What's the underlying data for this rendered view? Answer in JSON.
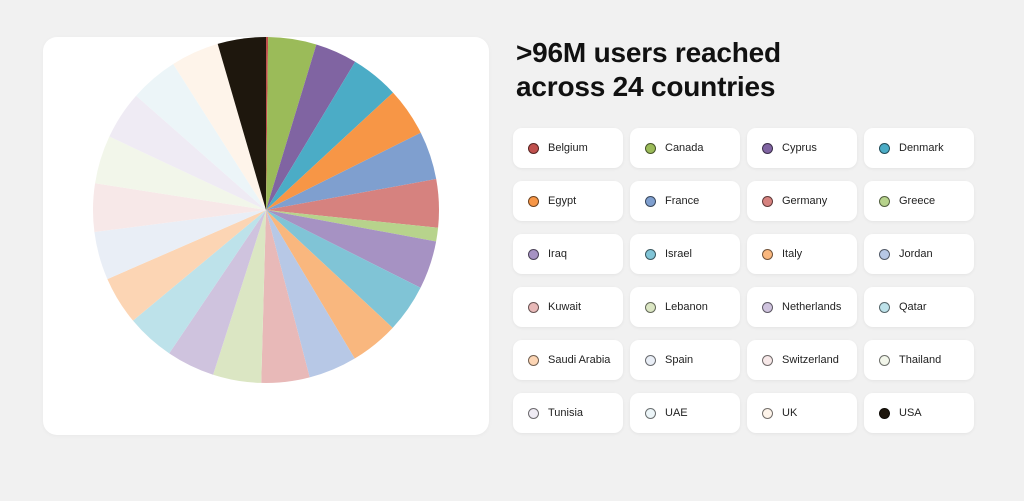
{
  "headline": {
    "line1": ">96M users reached",
    "line2": "across 24 countries"
  },
  "chart_data": {
    "type": "pie",
    "title": "",
    "categories": [
      "Belgium",
      "Canada",
      "Cyprus",
      "Denmark",
      "Egypt",
      "France",
      "Germany",
      "Greece",
      "Iraq",
      "Israel",
      "Italy",
      "Jordan",
      "Kuwait",
      "Lebanon",
      "Netherlands",
      "Qatar",
      "Saudi Arabia",
      "Spain",
      "Switzerland",
      "Thailand",
      "Tunisia",
      "UAE",
      "UK",
      "USA"
    ],
    "values": [
      0.2,
      4.6,
      4.0,
      4.6,
      4.6,
      4.6,
      4.6,
      1.3,
      4.6,
      4.6,
      4.6,
      4.6,
      4.6,
      4.6,
      4.6,
      4.6,
      4.6,
      4.6,
      4.6,
      4.6,
      4.6,
      4.6,
      4.6,
      4.6
    ],
    "colors": [
      "#c0504d",
      "#9bbb59",
      "#8064a2",
      "#4bacc6",
      "#f79646",
      "#7f9fcf",
      "#d6827f",
      "#b7d38c",
      "#a692c3",
      "#80c4d6",
      "#f9b77e",
      "#b7c8e6",
      "#e8b9b8",
      "#dbe6c3",
      "#cfc3de",
      "#bde2ea",
      "#fcd5b4",
      "#e9eef6",
      "#f7e8e8",
      "#f2f6ea",
      "#efebf4",
      "#ecf5f8",
      "#fef4ea",
      "#1e170d"
    ],
    "legend": "right"
  }
}
